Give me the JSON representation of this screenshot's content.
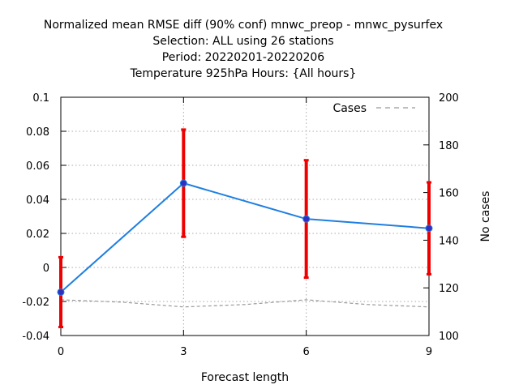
{
  "chart_data": {
    "type": "line",
    "title": [
      "Normalized mean RMSE diff (90% conf) mnwc_preop - mnwc_pysurfex",
      "Selection: ALL using    26 stations",
      "Period: 20220201-20220206",
      "Temperature 925hPa   Hours: {All hours}"
    ],
    "xlabel": "Forecast length",
    "ylabel": "",
    "y2label": "No cases",
    "xlim": [
      0,
      9
    ],
    "ylim": [
      -0.04,
      0.1
    ],
    "y2lim": [
      100,
      200
    ],
    "x_ticks": [
      "0",
      "3",
      "6",
      "9"
    ],
    "y_ticks": [
      "-0.04",
      "-0.02",
      "0",
      "0.02",
      "0.04",
      "0.06",
      "0.08",
      "0.1"
    ],
    "y2_ticks": [
      "100",
      "120",
      "140",
      "160",
      "180",
      "200"
    ],
    "grid": true,
    "legend_position": "top-right",
    "series": [
      {
        "x": [
          0,
          3,
          6,
          9
        ],
        "y": [
          -0.0145,
          0.0495,
          0.0285,
          0.023
        ],
        "err_low": [
          -0.035,
          0.018,
          -0.006,
          -0.004
        ],
        "err_high": [
          0.006,
          0.081,
          0.063,
          0.05
        ],
        "axis": "left",
        "color": "#1f7fe0",
        "marker_color": "#3030c0",
        "errorbar_color": "#ee0000"
      },
      {
        "name": "Cases",
        "x": [
          0,
          1.5,
          3,
          4.5,
          6,
          7.5,
          9
        ],
        "y": [
          115,
          114,
          112,
          113,
          115,
          113,
          112
        ],
        "axis": "right",
        "color": "#999999",
        "dashed": true
      }
    ]
  }
}
